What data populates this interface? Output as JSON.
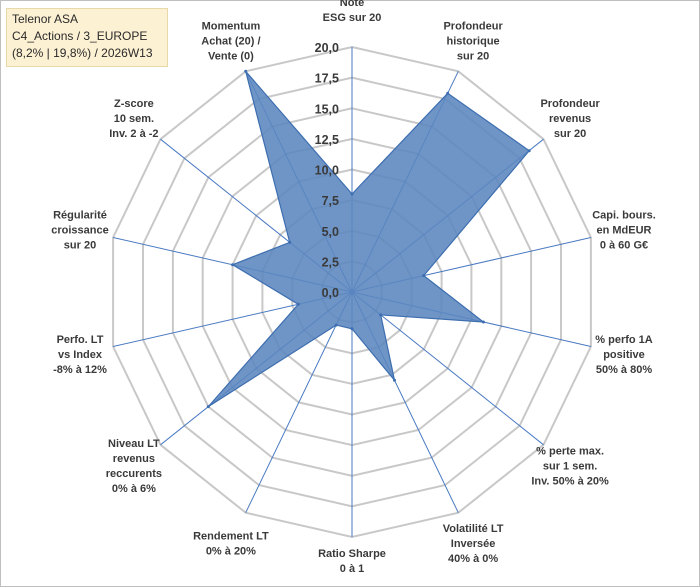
{
  "header": {
    "line1": "Telenor ASA",
    "line2": "C4_Actions / 3_EUROPE",
    "line3": "(8,2% | 19,8%) / 2026W13"
  },
  "colors": {
    "fill": "#5b86bf",
    "stroke": "#3d6eb0",
    "grid": "#c8c8c8",
    "spoke": "#4a7ac2"
  },
  "chart_data": {
    "type": "radar",
    "title": "",
    "rmin": 0,
    "rmax": 20,
    "gridlines": 8,
    "tick_labels": [
      "0,0",
      "2,5",
      "5,0",
      "7,5",
      "10,0",
      "12,5",
      "15,0",
      "17,5",
      "20,0"
    ],
    "categories": [
      {
        "label": [
          "Note",
          "ESG sur 20"
        ],
        "value": 8.0
      },
      {
        "label": [
          "Profondeur",
          "historique",
          "sur 20"
        ],
        "value": 18.0
      },
      {
        "label": [
          "Profondeur",
          "revenus",
          "sur 20"
        ],
        "value": 18.5
      },
      {
        "label": [
          "Capi. bours.",
          "en MdEUR",
          "0 à 60 G€"
        ],
        "value": 6.0
      },
      {
        "label": [
          "% perfo 1A",
          "positive",
          "50% à 80%"
        ],
        "value": 11.0
      },
      {
        "label": [
          "% perte max.",
          "sur 1 sem.",
          "Inv. 50% à 20%"
        ],
        "value": 3.0
      },
      {
        "label": [
          "Volatilité LT",
          "Inversée",
          "40% à 0%"
        ],
        "value": 8.0
      },
      {
        "label": [
          "Ratio Sharpe",
          "0 à 1"
        ],
        "value": 3.0
      },
      {
        "label": [
          "Rendement LT",
          "0% à 20%"
        ],
        "value": 3.0
      },
      {
        "label": [
          "Niveau LT",
          "revenus",
          "reccurents",
          "0% à 6%"
        ],
        "value": 15.0
      },
      {
        "label": [
          "Perfo. LT",
          "vs Index",
          "-8% à 12%"
        ],
        "value": 4.5
      },
      {
        "label": [
          "Régularité",
          "croissance",
          "sur 20"
        ],
        "value": 10.0
      },
      {
        "label": [
          "Z-score",
          "10 sem.",
          "Inv. 2 à -2"
        ],
        "value": 6.5
      },
      {
        "label": [
          "Momentum",
          "Achat (20) /",
          "Vente (0)"
        ],
        "value": 20.0
      }
    ]
  }
}
